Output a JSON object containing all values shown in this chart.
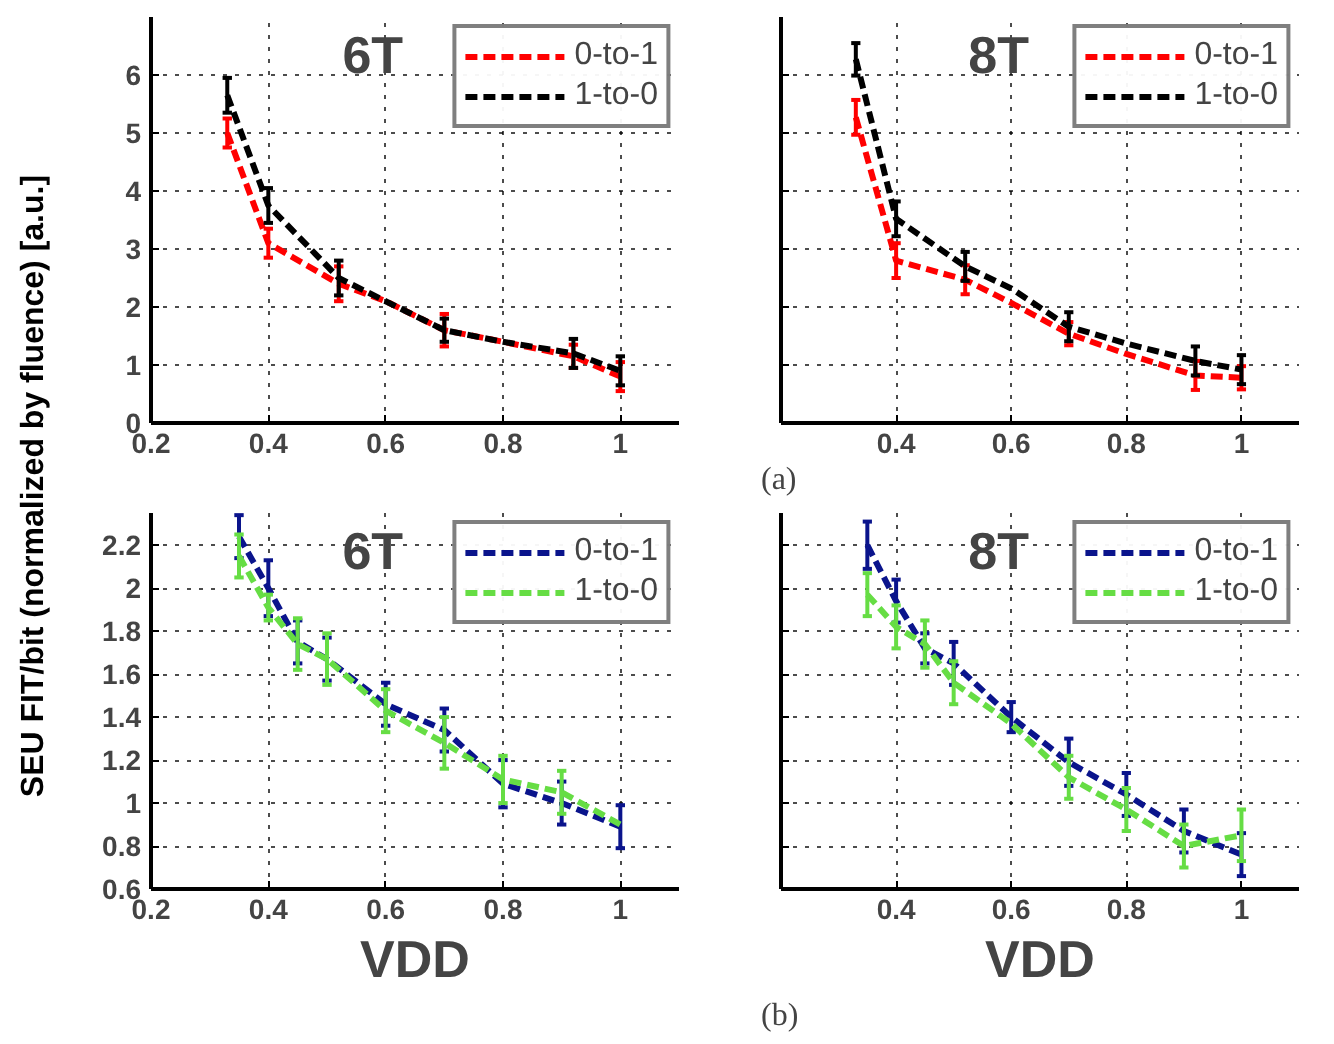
{
  "chart_data": [
    {
      "type": "line",
      "title": "6T",
      "ylabel": "SEU FIT/bit (normalized by fluence) [a.u.]",
      "xlim": [
        0.2,
        1.1
      ],
      "xticks": [
        0.2,
        0.4,
        0.6,
        0.8,
        1
      ],
      "ylim": [
        0,
        7
      ],
      "yticks": [
        0,
        1,
        2,
        3,
        4,
        5,
        6
      ],
      "grid": true,
      "legend": "top right",
      "line_style": "dashed",
      "series": [
        {
          "name": "0-to-1",
          "color": "#ff0000",
          "x": [
            0.33,
            0.4,
            0.52,
            0.6,
            0.7,
            0.8,
            0.92,
            1
          ],
          "values": [
            5.0,
            3.1,
            2.4,
            2.1,
            1.6,
            1.4,
            1.15,
            0.8
          ],
          "errors": [
            0.25,
            0.25,
            0.3,
            null,
            0.28,
            null,
            0.2,
            0.25
          ]
        },
        {
          "name": "1-to-0",
          "color": "#000000",
          "x": [
            0.33,
            0.4,
            0.52,
            0.6,
            0.7,
            0.8,
            0.92,
            1
          ],
          "values": [
            5.65,
            3.75,
            2.5,
            2.1,
            1.6,
            1.4,
            1.2,
            0.9
          ],
          "errors": [
            0.3,
            0.3,
            0.3,
            null,
            0.2,
            null,
            0.25,
            0.25
          ]
        }
      ]
    },
    {
      "type": "line",
      "title": "8T",
      "annotations": [
        "(a)"
      ],
      "xlim": [
        0.2,
        1.1
      ],
      "xticks": [
        0.4,
        0.6,
        0.8,
        1
      ],
      "ylim": [
        0,
        7
      ],
      "yticks": [
        0,
        1,
        2,
        3,
        4,
        5,
        6
      ],
      "tick_labels": "x",
      "grid": true,
      "legend": "top right",
      "line_style": "dashed",
      "series": [
        {
          "name": "0-to-1",
          "color": "#ff0000",
          "x": [
            0.33,
            0.4,
            0.52,
            0.6,
            0.7,
            0.8,
            0.92,
            1
          ],
          "values": [
            5.27,
            2.8,
            2.47,
            2.07,
            1.54,
            1.19,
            0.82,
            0.78
          ],
          "errors": [
            0.3,
            0.3,
            0.25,
            null,
            0.2,
            null,
            0.25,
            0.2
          ]
        },
        {
          "name": "1-to-0",
          "color": "#000000",
          "x": [
            0.33,
            0.4,
            0.52,
            0.6,
            0.7,
            0.8,
            0.92,
            1
          ],
          "values": [
            6.27,
            3.52,
            2.7,
            2.32,
            1.66,
            1.37,
            1.07,
            0.92
          ],
          "errors": [
            0.28,
            0.3,
            0.25,
            null,
            0.25,
            null,
            0.25,
            0.25
          ]
        }
      ]
    },
    {
      "type": "line",
      "title": "6T",
      "xlabel": "VDD",
      "xlim": [
        0.2,
        1.1
      ],
      "xticks": [
        0.2,
        0.4,
        0.6,
        0.8,
        1
      ],
      "ylim": [
        0.6,
        2.35
      ],
      "yticks": [
        0.6,
        0.8,
        1,
        1.2,
        1.4,
        1.6,
        1.8,
        2,
        2.2
      ],
      "grid": true,
      "legend": "top right",
      "line_style": "dashed",
      "series": [
        {
          "name": "0-to-1",
          "color": "#0a148c",
          "x": [
            0.35,
            0.4,
            0.45,
            0.5,
            0.6,
            0.7,
            0.8,
            0.9,
            1
          ],
          "values": [
            2.24,
            2.0,
            1.75,
            1.67,
            1.46,
            1.34,
            1.09,
            1.0,
            0.89
          ],
          "errors": [
            0.1,
            0.13,
            0.1,
            0.1,
            0.1,
            0.1,
            0.11,
            0.1,
            0.1
          ]
        },
        {
          "name": "1-to-0",
          "color": "#66dd44",
          "x": [
            0.35,
            0.4,
            0.45,
            0.5,
            0.6,
            0.7,
            0.8,
            0.9,
            1
          ],
          "values": [
            2.15,
            1.91,
            1.74,
            1.67,
            1.43,
            1.28,
            1.11,
            1.05,
            0.9
          ],
          "errors": [
            0.1,
            0.06,
            0.12,
            0.12,
            0.1,
            0.12,
            0.11,
            0.1,
            null
          ]
        }
      ]
    },
    {
      "type": "line",
      "title": "8T",
      "xlabel": "VDD",
      "annotations": [
        "(b)"
      ],
      "xlim": [
        0.2,
        1.1
      ],
      "xticks": [
        0.4,
        0.6,
        0.8,
        1
      ],
      "ylim": [
        0.6,
        2.35
      ],
      "yticks": [
        0.6,
        0.8,
        1,
        1.2,
        1.4,
        1.6,
        1.8,
        2,
        2.2
      ],
      "tick_labels": "x",
      "grid": true,
      "legend": "top right",
      "line_style": "dashed",
      "series": [
        {
          "name": "0-to-1",
          "color": "#0a148c",
          "x": [
            0.35,
            0.4,
            0.45,
            0.5,
            0.6,
            0.7,
            0.8,
            0.9,
            1
          ],
          "values": [
            2.2,
            1.94,
            1.72,
            1.65,
            1.4,
            1.19,
            1.04,
            0.87,
            0.76
          ],
          "errors": [
            0.11,
            0.1,
            0.07,
            0.1,
            0.07,
            0.11,
            0.1,
            0.1,
            0.1
          ]
        },
        {
          "name": "1-to-0",
          "color": "#66dd44",
          "x": [
            0.35,
            0.4,
            0.45,
            0.5,
            0.6,
            0.7,
            0.8,
            0.9,
            1
          ],
          "values": [
            1.97,
            1.82,
            1.74,
            1.56,
            1.37,
            1.12,
            0.97,
            0.8,
            0.85
          ],
          "errors": [
            0.1,
            0.1,
            0.11,
            0.1,
            null,
            0.1,
            0.1,
            0.1,
            0.12
          ]
        }
      ]
    }
  ]
}
